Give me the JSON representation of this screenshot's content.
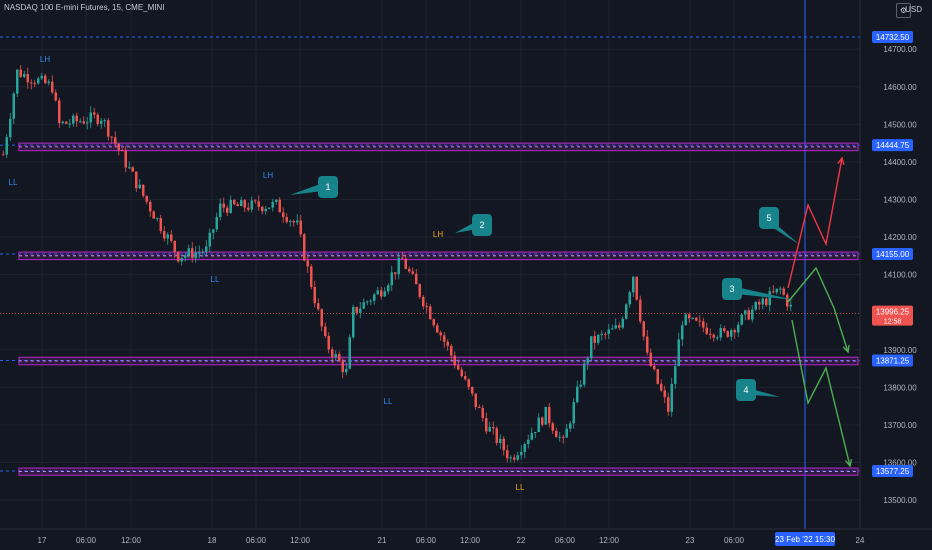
{
  "header": {
    "title": "NASDAQ 100 E-mini Futures, 15, CME_MINI"
  },
  "currency": "USD",
  "colors": {
    "background": "#131722",
    "grid": "#1f2330",
    "up": "#26a69a",
    "down": "#ef5350",
    "zone": "#9c27b0",
    "level_line": "#2962ff",
    "badge": "#17838a",
    "label_blue": "#2f8af5",
    "label_orange": "#f5a623",
    "arrow_red": "#f23645",
    "arrow_green": "#4caf50"
  },
  "chart_data": {
    "type": "candlestick",
    "y_ticks": [
      "14700.00",
      "14600.00",
      "14500.00",
      "14400.00",
      "14300.00",
      "14200.00",
      "14100.00",
      "13900.00",
      "13800.00",
      "13700.00",
      "13600.00",
      "13500.00"
    ],
    "x_ticks": [
      "17",
      "06:00",
      "12:00",
      "18",
      "06:00",
      "12:00",
      "21",
      "06:00",
      "12:00",
      "22",
      "06:00",
      "12:00",
      "23",
      "06:00",
      "24"
    ],
    "price_labels": [
      {
        "text": "14732.50",
        "value": 14732.5
      },
      {
        "text": "14444.75",
        "value": 14444.75
      },
      {
        "text": "14155.00",
        "value": 14155.0
      },
      {
        "text": "13871.25",
        "value": 13871.25
      },
      {
        "text": "13577.25",
        "value": 13577.25
      }
    ],
    "current_price": {
      "value": 13996.25,
      "text": "13996.25",
      "countdown": "12:58"
    },
    "cursor_time_label": "23 Feb '22   15:30",
    "zones": [
      {
        "name": "resistance-14444",
        "top": 14450,
        "bottom": 14430
      },
      {
        "name": "resistance-14155",
        "top": 14160,
        "bottom": 14140
      },
      {
        "name": "support-13871",
        "top": 13880,
        "bottom": 13860
      },
      {
        "name": "support-13577",
        "top": 13585,
        "bottom": 13566
      }
    ],
    "swing_labels": [
      {
        "text": "LH",
        "color": "blue"
      },
      {
        "text": "LL",
        "color": "blue"
      },
      {
        "text": "LH",
        "color": "blue"
      },
      {
        "text": "LL",
        "color": "blue"
      },
      {
        "text": "LH",
        "color": "orange"
      },
      {
        "text": "LL",
        "color": "blue"
      },
      {
        "text": "LL",
        "color": "orange"
      }
    ],
    "badges": [
      "1",
      "2",
      "3",
      "4",
      "5"
    ],
    "path_anchors": [
      {
        "bar": 0,
        "v": 14420
      },
      {
        "bar": 4,
        "v": 14640
      },
      {
        "bar": 14,
        "v": 14600
      },
      {
        "bar": 16,
        "v": 14500
      },
      {
        "bar": 28,
        "v": 14520
      },
      {
        "bar": 40,
        "v": 14310
      },
      {
        "bar": 50,
        "v": 14150
      },
      {
        "bar": 58,
        "v": 14165
      },
      {
        "bar": 62,
        "v": 14280
      },
      {
        "bar": 78,
        "v": 14285
      },
      {
        "bar": 84,
        "v": 14230
      },
      {
        "bar": 92,
        "v": 13920
      },
      {
        "bar": 98,
        "v": 13840
      },
      {
        "bar": 100,
        "v": 14000
      },
      {
        "bar": 108,
        "v": 14060
      },
      {
        "bar": 114,
        "v": 14140
      },
      {
        "bar": 124,
        "v": 13960
      },
      {
        "bar": 138,
        "v": 13700
      },
      {
        "bar": 145,
        "v": 13610
      },
      {
        "bar": 155,
        "v": 13730
      },
      {
        "bar": 160,
        "v": 13650
      },
      {
        "bar": 168,
        "v": 13920
      },
      {
        "bar": 176,
        "v": 13960
      },
      {
        "bar": 180,
        "v": 14100
      },
      {
        "bar": 184,
        "v": 13880
      },
      {
        "bar": 190,
        "v": 13740
      },
      {
        "bar": 194,
        "v": 13980
      },
      {
        "bar": 206,
        "v": 13940
      },
      {
        "bar": 216,
        "v": 14020
      },
      {
        "bar": 222,
        "v": 14060
      },
      {
        "bar": 226,
        "v": 13996
      }
    ]
  }
}
